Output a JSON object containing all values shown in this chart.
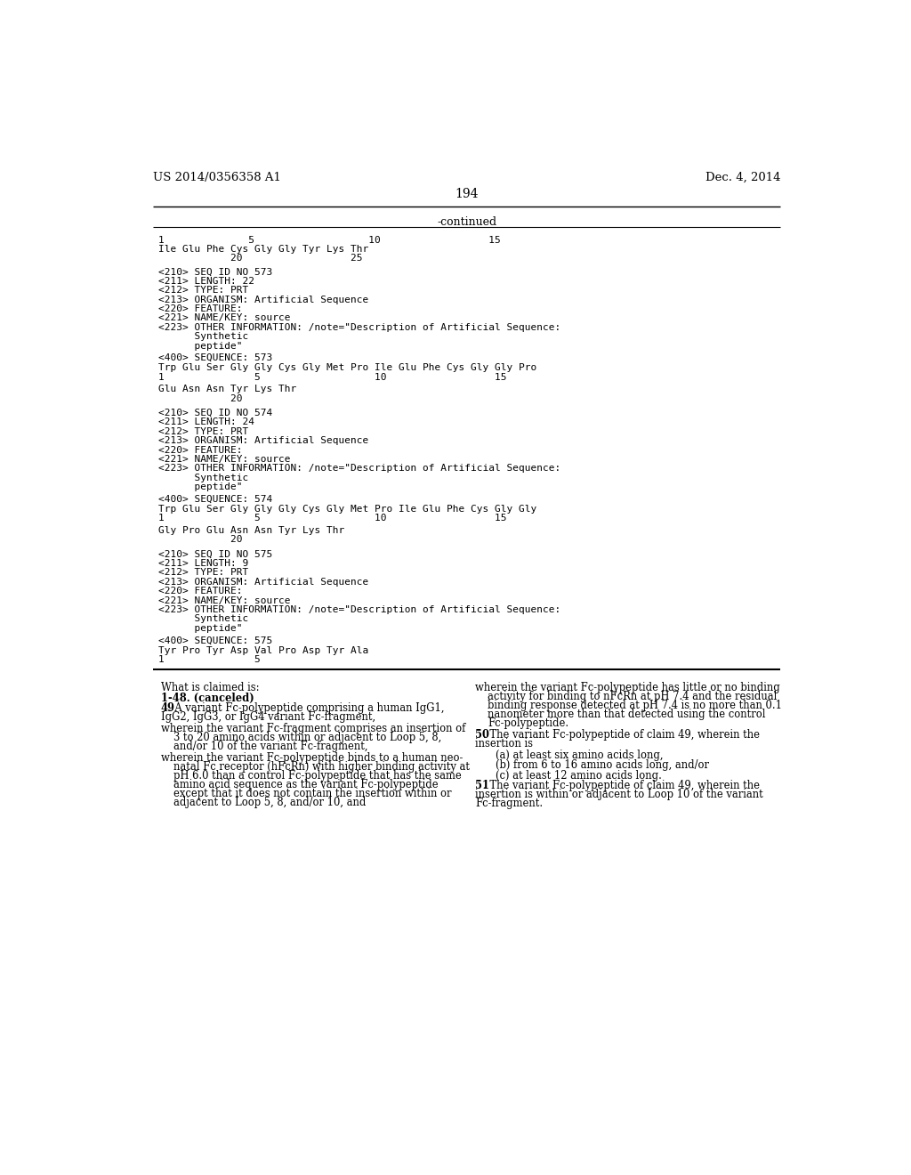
{
  "header_left": "US 2014/0356358 A1",
  "header_right": "Dec. 4, 2014",
  "page_number": "194",
  "continued_label": "-continued",
  "background_color": "#ffffff",
  "top_seq_lines": [
    "1              5                   10                  15",
    "Ile Glu Phe Cys Gly Gly Tyr Lys Thr",
    "            20                  25"
  ],
  "seq_blocks": [
    {
      "header_lines": [
        "<210> SEQ ID NO 573",
        "<211> LENGTH: 22",
        "<212> TYPE: PRT",
        "<213> ORGANISM: Artificial Sequence",
        "<220> FEATURE:",
        "<221> NAME/KEY: source",
        "<223> OTHER INFORMATION: /note=\"Description of Artificial Sequence:",
        "      Synthetic",
        "      peptide\""
      ],
      "seq_label": "<400> SEQUENCE: 573",
      "seq_lines": [
        "Trp Glu Ser Gly Gly Cys Gly Met Pro Ile Glu Phe Cys Gly Gly Pro",
        "1               5                   10                  15",
        "BLANK",
        "Glu Asn Asn Tyr Lys Thr",
        "            20"
      ]
    },
    {
      "header_lines": [
        "<210> SEQ ID NO 574",
        "<211> LENGTH: 24",
        "<212> TYPE: PRT",
        "<213> ORGANISM: Artificial Sequence",
        "<220> FEATURE:",
        "<221> NAME/KEY: source",
        "<223> OTHER INFORMATION: /note=\"Description of Artificial Sequence:",
        "      Synthetic",
        "      peptide\""
      ],
      "seq_label": "<400> SEQUENCE: 574",
      "seq_lines": [
        "Trp Glu Ser Gly Gly Gly Cys Gly Met Pro Ile Glu Phe Cys Gly Gly",
        "1               5                   10                  15",
        "BLANK",
        "Gly Pro Glu Asn Asn Tyr Lys Thr",
        "            20"
      ]
    },
    {
      "header_lines": [
        "<210> SEQ ID NO 575",
        "<211> LENGTH: 9",
        "<212> TYPE: PRT",
        "<213> ORGANISM: Artificial Sequence",
        "<220> FEATURE:",
        "<221> NAME/KEY: source",
        "<223> OTHER INFORMATION: /note=\"Description of Artificial Sequence:",
        "      Synthetic",
        "      peptide\""
      ],
      "seq_label": "<400> SEQUENCE: 575",
      "seq_lines": [
        "Tyr Pro Tyr Asp Val Pro Asp Tyr Ala",
        "1               5"
      ]
    }
  ],
  "left_claims": [
    {
      "t": "normal",
      "text": "What is claimed is:"
    },
    {
      "t": "bold",
      "text": "1-48. (canceled)"
    },
    {
      "t": "bold_inline",
      "bold_part": "49",
      "rest": ". A variant Fc-polypeptide comprising a human IgG1,\nIgG2, IgG3, or IgG4 variant Fc-fragment,"
    },
    {
      "t": "hanging",
      "first": "wherein the variant Fc-fragment comprises an insertion of",
      "rest": [
        "3 to 20 amino acids within or adjacent to Loop 5, 8,",
        "and/or 10 of the variant Fc-fragment,"
      ]
    },
    {
      "t": "hanging",
      "first": "wherein the variant Fc-polypeptide binds to a human neo-",
      "rest": [
        "natal Fc receptor (hFcRn) with higher binding activity at",
        "pH 6.0 than a control Fc-polypeptide that has the same",
        "amino acid sequence as the variant Fc-polypeptide",
        "except that it does not contain the insertion within or",
        "adjacent to Loop 5, 8, and/or 10, and"
      ]
    }
  ],
  "right_claims": [
    {
      "t": "hanging",
      "first": "wherein the variant Fc-polypeptide has little or no binding",
      "rest": [
        "activity for binding to nFcRn at pH 7.4 and the residual",
        "binding response detected at pH 7.4 is no more than 0.1",
        "nanometer more than that detected using the control",
        "Fc-polypeptide."
      ]
    },
    {
      "t": "bold_inline",
      "bold_part": "50",
      "rest": ". The variant Fc-polypeptide of claim 49, wherein the\ninsertion is"
    },
    {
      "t": "indent2",
      "text": "(a) at least six amino acids long,"
    },
    {
      "t": "indent2",
      "text": "(b) from 6 to 16 amino acids long, and/or"
    },
    {
      "t": "indent2",
      "text": "(c) at least 12 amino acids long."
    },
    {
      "t": "bold_inline",
      "bold_part": "51",
      "rest": ". The variant Fc-polypeptide of claim 49, wherein the\ninsertion is within or adjacent to Loop 10 of the variant\nFc-fragment."
    }
  ]
}
